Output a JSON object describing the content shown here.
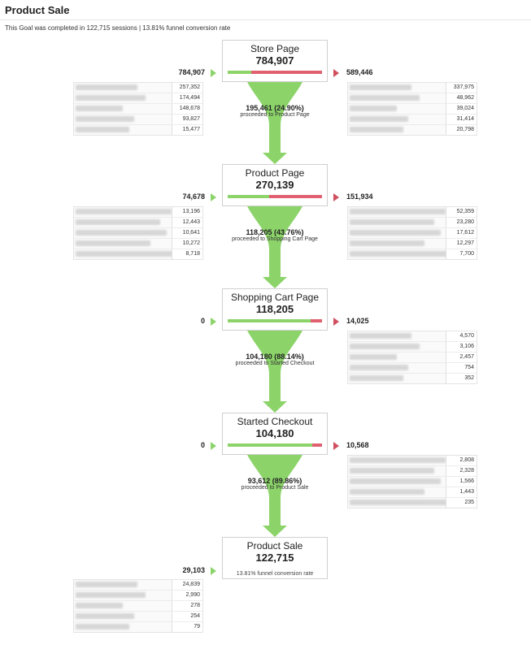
{
  "header": {
    "title": "Product Sale",
    "subtitle": "This Goal was completed in 122,715 sessions | 13.81% funnel conversion rate"
  },
  "colors": {
    "green": "#8cd46a",
    "red": "#e06070"
  },
  "steps": [
    {
      "name": "Store Page",
      "value": "784,907",
      "entrances": "784,907",
      "exits": "589,446",
      "conversion": 0.249,
      "entrance_sources": [
        "257,352",
        "174,494",
        "148,678",
        "93,827",
        "15,477"
      ],
      "exit_sources": [
        "337,975",
        "48,962",
        "39,024",
        "31,414",
        "20,798"
      ],
      "flow_main": "195,461 (24.90%)",
      "flow_sub": "proceeded to Product Page"
    },
    {
      "name": "Product Page",
      "value": "270,139",
      "entrances": "74,678",
      "exits": "151,934",
      "conversion": 0.4376,
      "entrance_sources": [
        "13,196",
        "12,443",
        "10,641",
        "10,272",
        "8,718"
      ],
      "exit_sources": [
        "52,359",
        "23,280",
        "17,612",
        "12,297",
        "7,700"
      ],
      "flow_main": "118,205 (43.76%)",
      "flow_sub": "proceeded to Shopping Cart Page"
    },
    {
      "name": "Shopping Cart Page",
      "value": "118,205",
      "entrances": "0",
      "exits": "14,025",
      "conversion": 0.8814,
      "entrance_sources": [],
      "exit_sources": [
        "4,570",
        "3,106",
        "2,457",
        "754",
        "352"
      ],
      "flow_main": "104,180 (88.14%)",
      "flow_sub": "proceeded to Started Checkout"
    },
    {
      "name": "Started Checkout",
      "value": "104,180",
      "entrances": "0",
      "exits": "10,568",
      "conversion": 0.8986,
      "entrance_sources": [],
      "exit_sources": [
        "2,808",
        "2,328",
        "1,566",
        "1,443",
        "235"
      ],
      "flow_main": "93,612 (89.86%)",
      "flow_sub": "proceeded to Product Sale"
    },
    {
      "name": "Product Sale",
      "value": "122,715",
      "entrances": "29,103",
      "exits": "",
      "note": "13.81% funnel conversion rate",
      "entrance_sources": [
        "24,839",
        "2,990",
        "278",
        "254",
        "79"
      ],
      "exit_sources": []
    }
  ]
}
